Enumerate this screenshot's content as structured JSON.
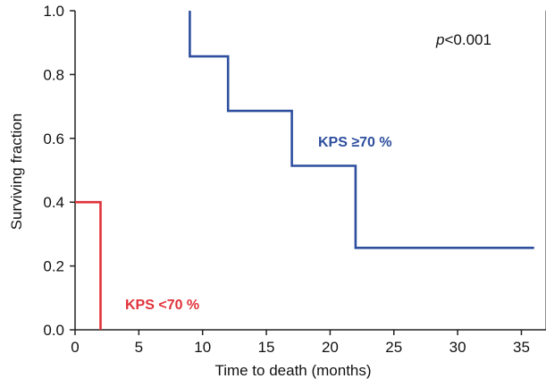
{
  "chart_data": {
    "type": "line",
    "step": true,
    "title": "",
    "xlabel": "Time to death (months)",
    "ylabel": "Surviving fraction",
    "xlim": [
      0,
      37
    ],
    "ylim": [
      0,
      1.0
    ],
    "xticks": [
      0,
      5,
      10,
      15,
      20,
      25,
      30,
      35
    ],
    "yticks": [
      0.0,
      0.2,
      0.4,
      0.6,
      0.8,
      1.0
    ],
    "ytick_labels": [
      "0.0",
      "0.2",
      "0.4",
      "0.6",
      "0.8",
      "1.0"
    ],
    "grid": false,
    "annotation": {
      "italic": "p",
      "rest": "<0.001"
    },
    "series": [
      {
        "name": "KPS ≥70 %",
        "color": "#2e4f9e",
        "x": [
          9,
          9,
          12,
          12,
          17,
          17,
          22,
          22,
          36
        ],
        "y": [
          1.0,
          0.857,
          0.857,
          0.686,
          0.686,
          0.514,
          0.514,
          0.257,
          0.257
        ]
      },
      {
        "name": "KPS <70 %",
        "color": "#e0323a",
        "x": [
          0,
          2,
          2
        ],
        "y": [
          0.4,
          0.4,
          0.0
        ]
      }
    ]
  }
}
